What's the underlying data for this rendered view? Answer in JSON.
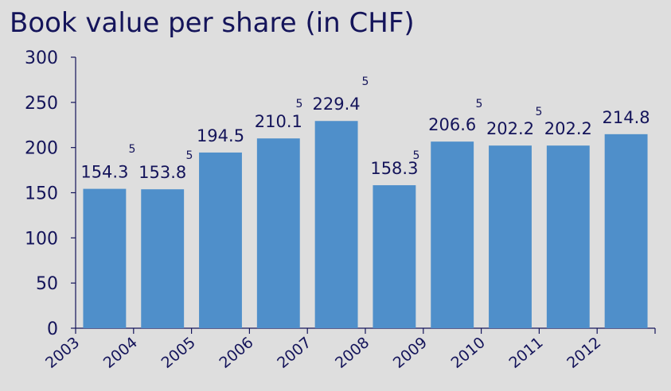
{
  "chart_data": {
    "type": "bar",
    "title": "Book value per share (in CHF)",
    "categories": [
      "2003",
      "2004",
      "2005",
      "2006",
      "2007",
      "2008",
      "2009",
      "2010",
      "2011",
      "2012"
    ],
    "values": [
      154.3,
      153.8,
      194.5,
      210.1,
      229.4,
      158.3,
      206.6,
      202.2,
      202.2,
      214.8
    ],
    "color": "#4f8fca",
    "ylim": [
      0,
      300
    ],
    "yticks": [
      0,
      50,
      100,
      150,
      200,
      250,
      300
    ],
    "grid": false,
    "annotations": [
      "5",
      "5",
      "5",
      "5",
      "5",
      "5",
      "5"
    ]
  }
}
